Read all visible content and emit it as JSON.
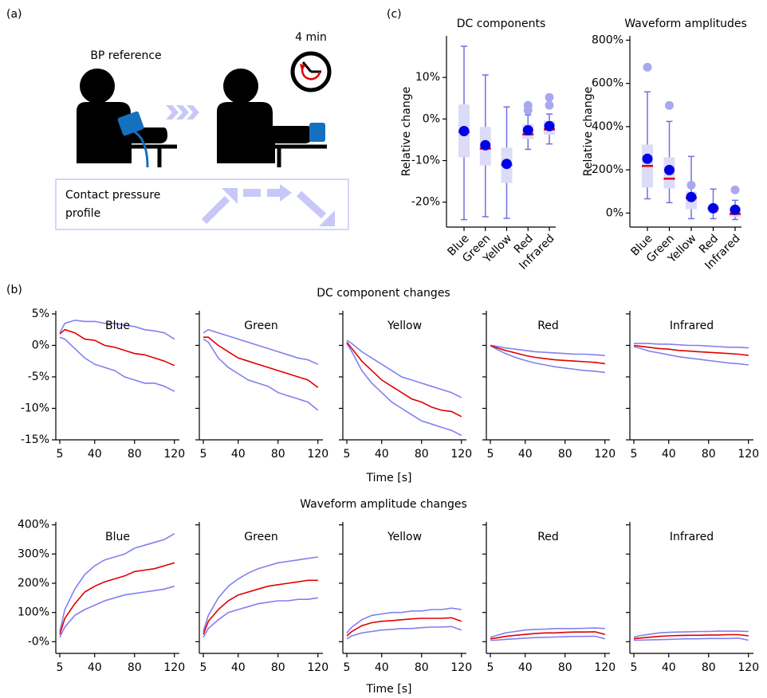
{
  "panels": {
    "a": "(a)",
    "b": "(b)",
    "c": "(c)"
  },
  "diagram": {
    "bp_label": "BP reference",
    "time_label": "4 min",
    "profile_label": [
      "Contact pressure",
      "profile"
    ]
  },
  "rows": [
    {
      "title": "DC component changes",
      "xlabel": "Time [s]"
    },
    {
      "title": "Waveform amplitude changes",
      "xlabel": "Time [s]"
    }
  ],
  "chart_data": [
    {
      "type": "box",
      "title": "DC components",
      "ylabel": "Relative change",
      "categories": [
        "Blue",
        "Green",
        "Yellow",
        "Red",
        "Infrared"
      ],
      "whislo": [
        -24.2,
        -23.5,
        -23.9,
        -7.3,
        -6
      ],
      "q1": [
        -9.2,
        -11.2,
        -15.4,
        -4.8,
        -3.8
      ],
      "med": [
        -3.1,
        -7.1,
        -11,
        -3.7,
        -2.5
      ],
      "q3": [
        3.5,
        -1.9,
        -6.9,
        -1.3,
        -0.4
      ],
      "whishi": [
        17.5,
        10.6,
        2.9,
        1,
        1.2
      ],
      "mean": [
        -2.9,
        -6.3,
        -10.8,
        -2.7,
        -1.7
      ],
      "fliers": [
        [],
        [],
        [],
        [
          3.3,
          2.1
        ],
        [
          5.2,
          3.3
        ]
      ],
      "ylim": [
        -26,
        20
      ],
      "yticks": [
        {
          "value": 10,
          "label": "10%"
        },
        {
          "value": 0,
          "label": "0%"
        },
        {
          "value": -10,
          "label": "-10%"
        },
        {
          "value": -20,
          "label": "-20%"
        }
      ],
      "box_color": "#dcdcf8",
      "whisker_color": "#7070e0",
      "median_color": "#e00000",
      "mean_color": "#0000e6",
      "flier_color": "#a8a8f0"
    },
    {
      "type": "box",
      "title": "Waveform amplitudes",
      "ylabel": "Relative change",
      "categories": [
        "Blue",
        "Green",
        "Yellow",
        "Red",
        "Infrared"
      ],
      "whislo": [
        66,
        48,
        -26,
        -26,
        -30
      ],
      "q1": [
        118,
        114,
        18,
        4,
        -18
      ],
      "med": [
        218,
        159,
        70,
        22,
        -4
      ],
      "q3": [
        317,
        258,
        100,
        37,
        26
      ],
      "whishi": [
        561,
        424,
        262,
        111,
        59
      ],
      "mean": [
        251,
        199,
        74,
        22,
        15
      ],
      "fliers": [
        [
          675
        ],
        [
          498
        ],
        [
          129
        ],
        [],
        [
          107
        ]
      ],
      "ylim": [
        -65,
        820
      ],
      "yticks": [
        {
          "value": 800,
          "label": "800%"
        },
        {
          "value": 600,
          "label": "600%"
        },
        {
          "value": 400,
          "label": "400%"
        },
        {
          "value": 200,
          "label": "200%"
        },
        {
          "value": 0,
          "label": "0%"
        }
      ],
      "box_color": "#dcdcf8",
      "whisker_color": "#7070e0",
      "median_color": "#e00000",
      "mean_color": "#0000e6",
      "flier_color": "#a8a8f0"
    },
    {
      "type": "line",
      "title": "Blue",
      "x": [
        5,
        10,
        20,
        30,
        40,
        50,
        60,
        70,
        80,
        90,
        100,
        110,
        120
      ],
      "xlim": [
        1,
        125
      ],
      "xticks": [
        5,
        40,
        80,
        120
      ],
      "ylim": [
        -15,
        5.5
      ],
      "yticks": [
        {
          "value": 5,
          "label": "5%"
        },
        {
          "value": 0,
          "label": "0%"
        },
        {
          "value": -5,
          "label": "-5%"
        },
        {
          "value": -10,
          "label": "-10%"
        },
        {
          "value": -15,
          "label": "-15%"
        }
      ],
      "series": [
        {
          "color": "#8080f0",
          "values": [
            2,
            3.5,
            4,
            3.8,
            3.8,
            3.5,
            3.5,
            3.2,
            3,
            2.5,
            2.3,
            2,
            1
          ]
        },
        {
          "color": "#8080f0",
          "values": [
            1.3,
            1,
            -0.5,
            -2,
            -3,
            -3.5,
            -4,
            -5,
            -5.5,
            -6,
            -6,
            -6.5,
            -7.3
          ]
        },
        {
          "color": "#e00000",
          "values": [
            1.8,
            2.5,
            2,
            1,
            0.8,
            0,
            -0.3,
            -0.8,
            -1.3,
            -1.5,
            -2,
            -2.5,
            -3.2
          ]
        }
      ]
    },
    {
      "type": "line",
      "title": "Green",
      "x": [
        5,
        10,
        20,
        30,
        40,
        50,
        60,
        70,
        80,
        90,
        100,
        110,
        120
      ],
      "xlim": [
        1,
        125
      ],
      "xticks": [
        5,
        40,
        80,
        120
      ],
      "ylim": [
        -15,
        5.5
      ],
      "yticks": [
        5,
        0,
        -5,
        -10,
        -15
      ],
      "ytick_labels": false,
      "series": [
        {
          "color": "#8080f0",
          "values": [
            2,
            2.5,
            2,
            1.5,
            1,
            0.5,
            0,
            -0.5,
            -1,
            -1.5,
            -2,
            -2.3,
            -3
          ]
        },
        {
          "color": "#8080f0",
          "values": [
            1,
            0.5,
            -2,
            -3.5,
            -4.5,
            -5.5,
            -6,
            -6.5,
            -7.5,
            -8,
            -8.5,
            -9,
            -10.3
          ]
        },
        {
          "color": "#e00000",
          "values": [
            1.3,
            1.3,
            0,
            -1,
            -2,
            -2.5,
            -3,
            -3.5,
            -4,
            -4.5,
            -5,
            -5.5,
            -6.7
          ]
        }
      ]
    },
    {
      "type": "line",
      "title": "Yellow",
      "x": [
        5,
        10,
        20,
        30,
        40,
        50,
        60,
        70,
        80,
        90,
        100,
        110,
        120
      ],
      "xlim": [
        1,
        125
      ],
      "xticks": [
        5,
        40,
        80,
        120
      ],
      "ylim": [
        -15,
        5.5
      ],
      "yticks": [
        5,
        0,
        -5,
        -10,
        -15
      ],
      "ytick_labels": false,
      "series": [
        {
          "color": "#8080f0",
          "values": [
            0.8,
            0.3,
            -1,
            -2,
            -3,
            -4,
            -5,
            -5.5,
            -6,
            -6.5,
            -7,
            -7.5,
            -8.3
          ]
        },
        {
          "color": "#8080f0",
          "values": [
            0.3,
            -1,
            -4,
            -6,
            -7.5,
            -9,
            -10,
            -11,
            -12,
            -12.5,
            -13,
            -13.5,
            -14.3
          ]
        },
        {
          "color": "#e00000",
          "values": [
            0.5,
            -0.5,
            -2.5,
            -4,
            -5.5,
            -6.5,
            -7.5,
            -8.5,
            -9,
            -9.8,
            -10.3,
            -10.5,
            -11.3
          ]
        }
      ]
    },
    {
      "type": "line",
      "title": "Red",
      "x": [
        5,
        10,
        20,
        30,
        40,
        50,
        60,
        70,
        80,
        90,
        100,
        110,
        120
      ],
      "xlim": [
        1,
        125
      ],
      "xticks": [
        5,
        40,
        80,
        120
      ],
      "ylim": [
        -15,
        5.5
      ],
      "yticks": [
        5,
        0,
        -5,
        -10,
        -15
      ],
      "ytick_labels": false,
      "series": [
        {
          "color": "#8080f0",
          "values": [
            0,
            -0.1,
            -0.4,
            -0.6,
            -0.8,
            -1,
            -1.1,
            -1.2,
            -1.3,
            -1.4,
            -1.4,
            -1.5,
            -1.6
          ]
        },
        {
          "color": "#8080f0",
          "values": [
            0,
            -0.5,
            -1.3,
            -1.9,
            -2.4,
            -2.8,
            -3.1,
            -3.4,
            -3.6,
            -3.8,
            -4,
            -4.1,
            -4.3
          ]
        },
        {
          "color": "#e00000",
          "values": [
            0,
            -0.3,
            -0.8,
            -1.2,
            -1.6,
            -1.9,
            -2.1,
            -2.3,
            -2.4,
            -2.5,
            -2.6,
            -2.7,
            -2.9
          ]
        }
      ]
    },
    {
      "type": "line",
      "title": "Infrared",
      "x": [
        5,
        10,
        20,
        30,
        40,
        50,
        60,
        70,
        80,
        90,
        100,
        110,
        120
      ],
      "xlim": [
        1,
        125
      ],
      "xticks": [
        5,
        40,
        80,
        120
      ],
      "ylim": [
        -15,
        5.5
      ],
      "yticks": [
        5,
        0,
        -5,
        -10,
        -15
      ],
      "ytick_labels": false,
      "series": [
        {
          "color": "#8080f0",
          "values": [
            0.3,
            0.3,
            0.3,
            0.2,
            0.2,
            0.1,
            0,
            0,
            -0.1,
            -0.2,
            -0.3,
            -0.3,
            -0.4
          ]
        },
        {
          "color": "#8080f0",
          "values": [
            -0.2,
            -0.4,
            -0.9,
            -1.2,
            -1.5,
            -1.8,
            -2,
            -2.2,
            -2.4,
            -2.6,
            -2.8,
            -2.9,
            -3.1
          ]
        },
        {
          "color": "#e00000",
          "values": [
            0,
            -0.1,
            -0.3,
            -0.5,
            -0.6,
            -0.8,
            -0.9,
            -1,
            -1.1,
            -1.2,
            -1.3,
            -1.4,
            -1.6
          ]
        }
      ]
    },
    {
      "type": "line",
      "title": "Blue",
      "x": [
        5,
        10,
        20,
        30,
        40,
        50,
        60,
        70,
        80,
        90,
        100,
        110,
        120
      ],
      "xlim": [
        1,
        125
      ],
      "xticks": [
        5,
        40,
        80,
        120
      ],
      "ylim": [
        -40,
        410
      ],
      "yticks": [
        {
          "value": 400,
          "label": "400%"
        },
        {
          "value": 300,
          "label": "300%"
        },
        {
          "value": 200,
          "label": "200%"
        },
        {
          "value": 100,
          "label": "100%"
        },
        {
          "value": 0,
          "label": "-0%"
        }
      ],
      "series": [
        {
          "color": "#8080f0",
          "values": [
            35,
            110,
            180,
            230,
            260,
            280,
            290,
            300,
            320,
            330,
            340,
            350,
            370
          ]
        },
        {
          "color": "#8080f0",
          "values": [
            15,
            50,
            90,
            110,
            125,
            140,
            150,
            160,
            165,
            170,
            175,
            180,
            190
          ]
        },
        {
          "color": "#e00000",
          "values": [
            25,
            80,
            130,
            170,
            190,
            205,
            215,
            225,
            240,
            245,
            250,
            260,
            270
          ]
        }
      ]
    },
    {
      "type": "line",
      "title": "Green",
      "x": [
        5,
        10,
        20,
        30,
        40,
        50,
        60,
        70,
        80,
        90,
        100,
        110,
        120
      ],
      "xlim": [
        1,
        125
      ],
      "xticks": [
        5,
        40,
        80,
        120
      ],
      "ylim": [
        -40,
        410
      ],
      "yticks": [
        400,
        300,
        200,
        100,
        0
      ],
      "ytick_labels": false,
      "series": [
        {
          "color": "#8080f0",
          "values": [
            35,
            90,
            150,
            190,
            215,
            235,
            250,
            260,
            270,
            275,
            280,
            285,
            290
          ]
        },
        {
          "color": "#8080f0",
          "values": [
            15,
            45,
            75,
            100,
            110,
            120,
            130,
            135,
            140,
            140,
            145,
            145,
            150
          ]
        },
        {
          "color": "#e00000",
          "values": [
            25,
            70,
            110,
            140,
            160,
            170,
            180,
            190,
            195,
            200,
            205,
            210,
            210
          ]
        }
      ]
    },
    {
      "type": "line",
      "title": "Yellow",
      "x": [
        5,
        10,
        20,
        30,
        40,
        50,
        60,
        70,
        80,
        90,
        100,
        110,
        120
      ],
      "xlim": [
        1,
        125
      ],
      "xticks": [
        5,
        40,
        80,
        120
      ],
      "ylim": [
        -40,
        410
      ],
      "yticks": [
        400,
        300,
        200,
        100,
        0
      ],
      "ytick_labels": false,
      "series": [
        {
          "color": "#8080f0",
          "values": [
            30,
            50,
            75,
            90,
            95,
            100,
            100,
            105,
            105,
            110,
            110,
            115,
            110
          ]
        },
        {
          "color": "#8080f0",
          "values": [
            10,
            20,
            30,
            35,
            40,
            42,
            45,
            45,
            48,
            50,
            50,
            52,
            40
          ]
        },
        {
          "color": "#e00000",
          "values": [
            20,
            35,
            55,
            65,
            70,
            72,
            75,
            78,
            80,
            80,
            80,
            82,
            70
          ]
        }
      ]
    },
    {
      "type": "line",
      "title": "Red",
      "x": [
        5,
        10,
        20,
        30,
        40,
        50,
        60,
        70,
        80,
        90,
        100,
        110,
        120
      ],
      "xlim": [
        1,
        125
      ],
      "xticks": [
        5,
        40,
        80,
        120
      ],
      "ylim": [
        -40,
        410
      ],
      "yticks": [
        400,
        300,
        200,
        100,
        0
      ],
      "ytick_labels": false,
      "series": [
        {
          "color": "#8080f0",
          "values": [
            15,
            20,
            30,
            35,
            40,
            42,
            43,
            45,
            45,
            45,
            46,
            47,
            45
          ]
        },
        {
          "color": "#8080f0",
          "values": [
            5,
            5,
            8,
            10,
            12,
            14,
            15,
            16,
            17,
            18,
            18,
            19,
            10
          ]
        },
        {
          "color": "#e00000",
          "values": [
            10,
            12,
            18,
            22,
            25,
            28,
            30,
            30,
            32,
            33,
            33,
            34,
            25
          ]
        }
      ]
    },
    {
      "type": "line",
      "title": "Infrared",
      "x": [
        5,
        10,
        20,
        30,
        40,
        50,
        60,
        70,
        80,
        90,
        100,
        110,
        120
      ],
      "xlim": [
        1,
        125
      ],
      "xticks": [
        5,
        40,
        80,
        120
      ],
      "ylim": [
        -40,
        410
      ],
      "yticks": [
        400,
        300,
        200,
        100,
        0
      ],
      "ytick_labels": false,
      "series": [
        {
          "color": "#8080f0",
          "values": [
            15,
            20,
            25,
            30,
            32,
            33,
            34,
            35,
            35,
            36,
            36,
            36,
            35
          ]
        },
        {
          "color": "#8080f0",
          "values": [
            5,
            5,
            6,
            7,
            8,
            9,
            10,
            10,
            11,
            11,
            11,
            12,
            5
          ]
        },
        {
          "color": "#e00000",
          "values": [
            10,
            12,
            15,
            18,
            20,
            21,
            22,
            22,
            23,
            23,
            24,
            24,
            20
          ]
        }
      ]
    }
  ]
}
